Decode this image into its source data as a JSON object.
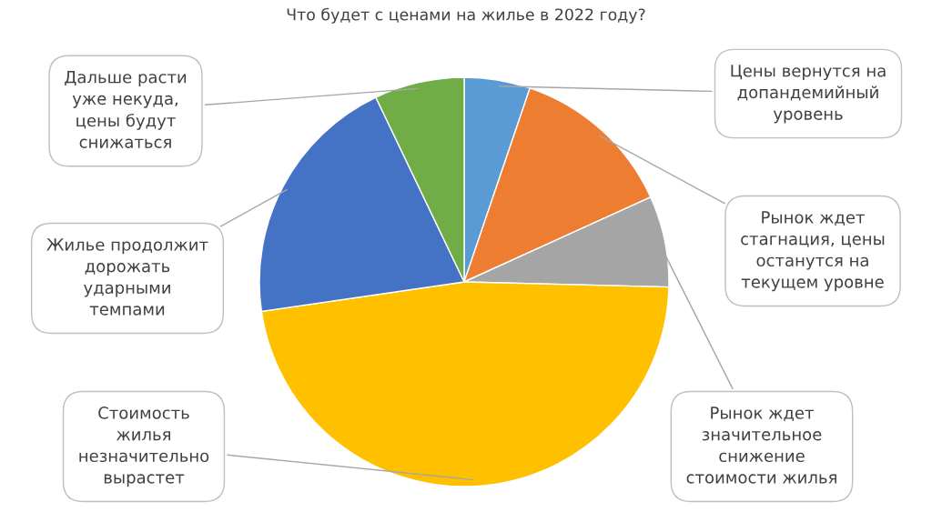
{
  "chart_data": {
    "type": "pie",
    "title": "Что будет с ценами на жилье в 2022 году?",
    "categories": [
      "Цены вернутся на\nдопандемийный\nуровень",
      "Рынок ждет\nстагнация, цены\nостанутся на\nтекущем уровне",
      "Рынок ждет\nзначительное\nснижение\nстоимости жилья",
      "Стоимость\nжилья\nнезначительно\nвырастет",
      "Жилье продолжит\nдорожать\nударными\nтемпами",
      "Дальше расти\nуже некуда,\nцены будут\nснижаться"
    ],
    "values": [
      5.2,
      13,
      7.2,
      47.3,
      20.2,
      7.1
    ],
    "colors": [
      "#5b9bd5",
      "#ed7d31",
      "#a5a5a5",
      "#ffc000",
      "#4472c4",
      "#70ad47"
    ]
  }
}
